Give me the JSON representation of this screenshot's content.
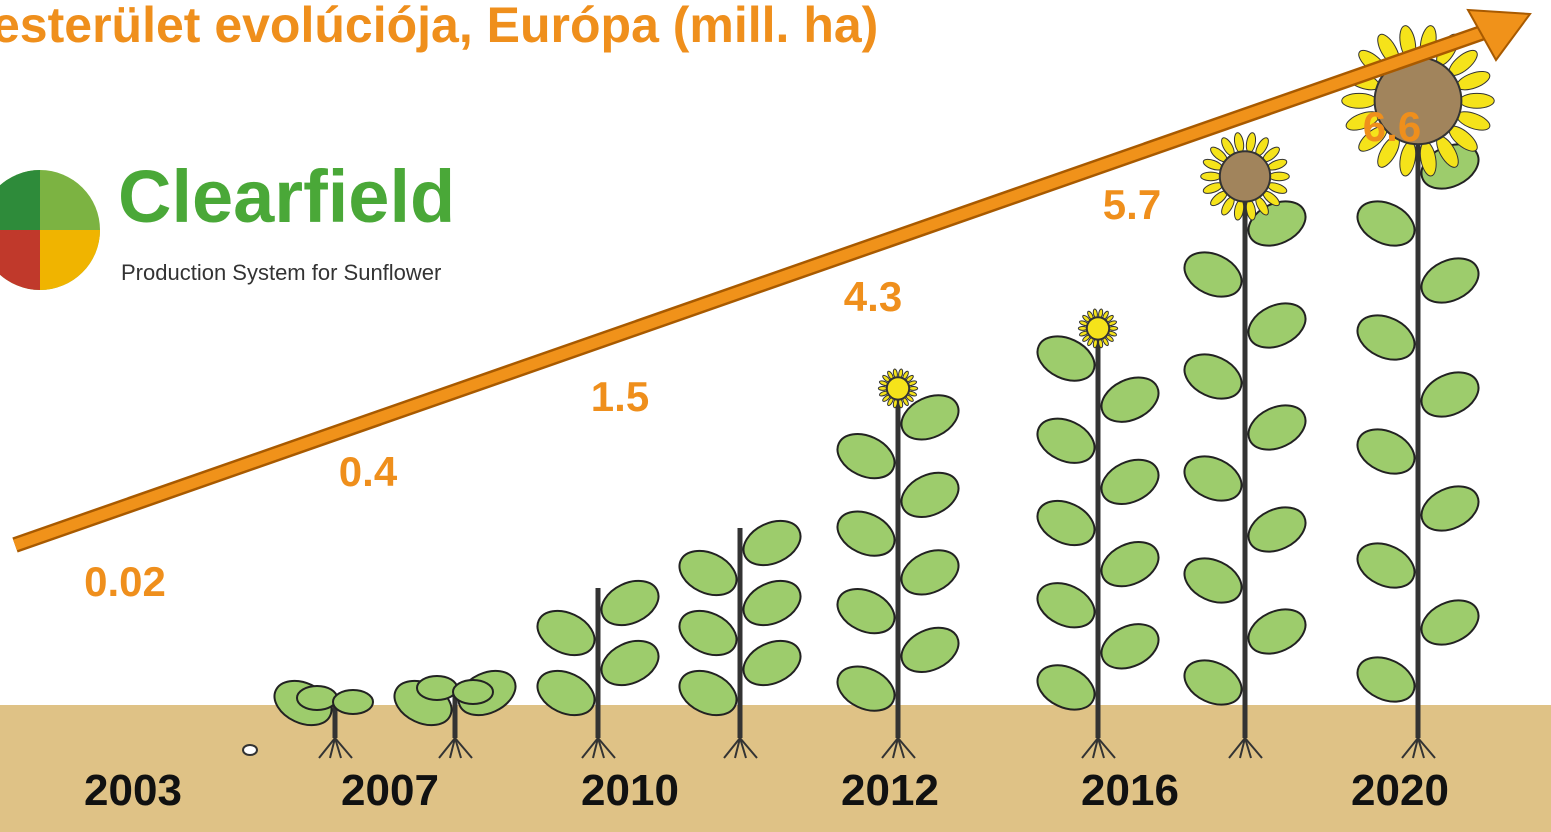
{
  "title": "esterület evolúciója, Európa (mill. ha)",
  "logo": {
    "name": "Clearfield",
    "tagline": "Production System for Sunflower"
  },
  "milestones": [
    {
      "year": "2003",
      "value": "0.02"
    },
    {
      "year": "2007",
      "value": "0.4"
    },
    {
      "year": "2010",
      "value": "1.5"
    },
    {
      "year": "2012",
      "value": "4.3"
    },
    {
      "year": "2016",
      "value": "5.7"
    },
    {
      "year": "2020",
      "value": "6.6"
    }
  ]
}
